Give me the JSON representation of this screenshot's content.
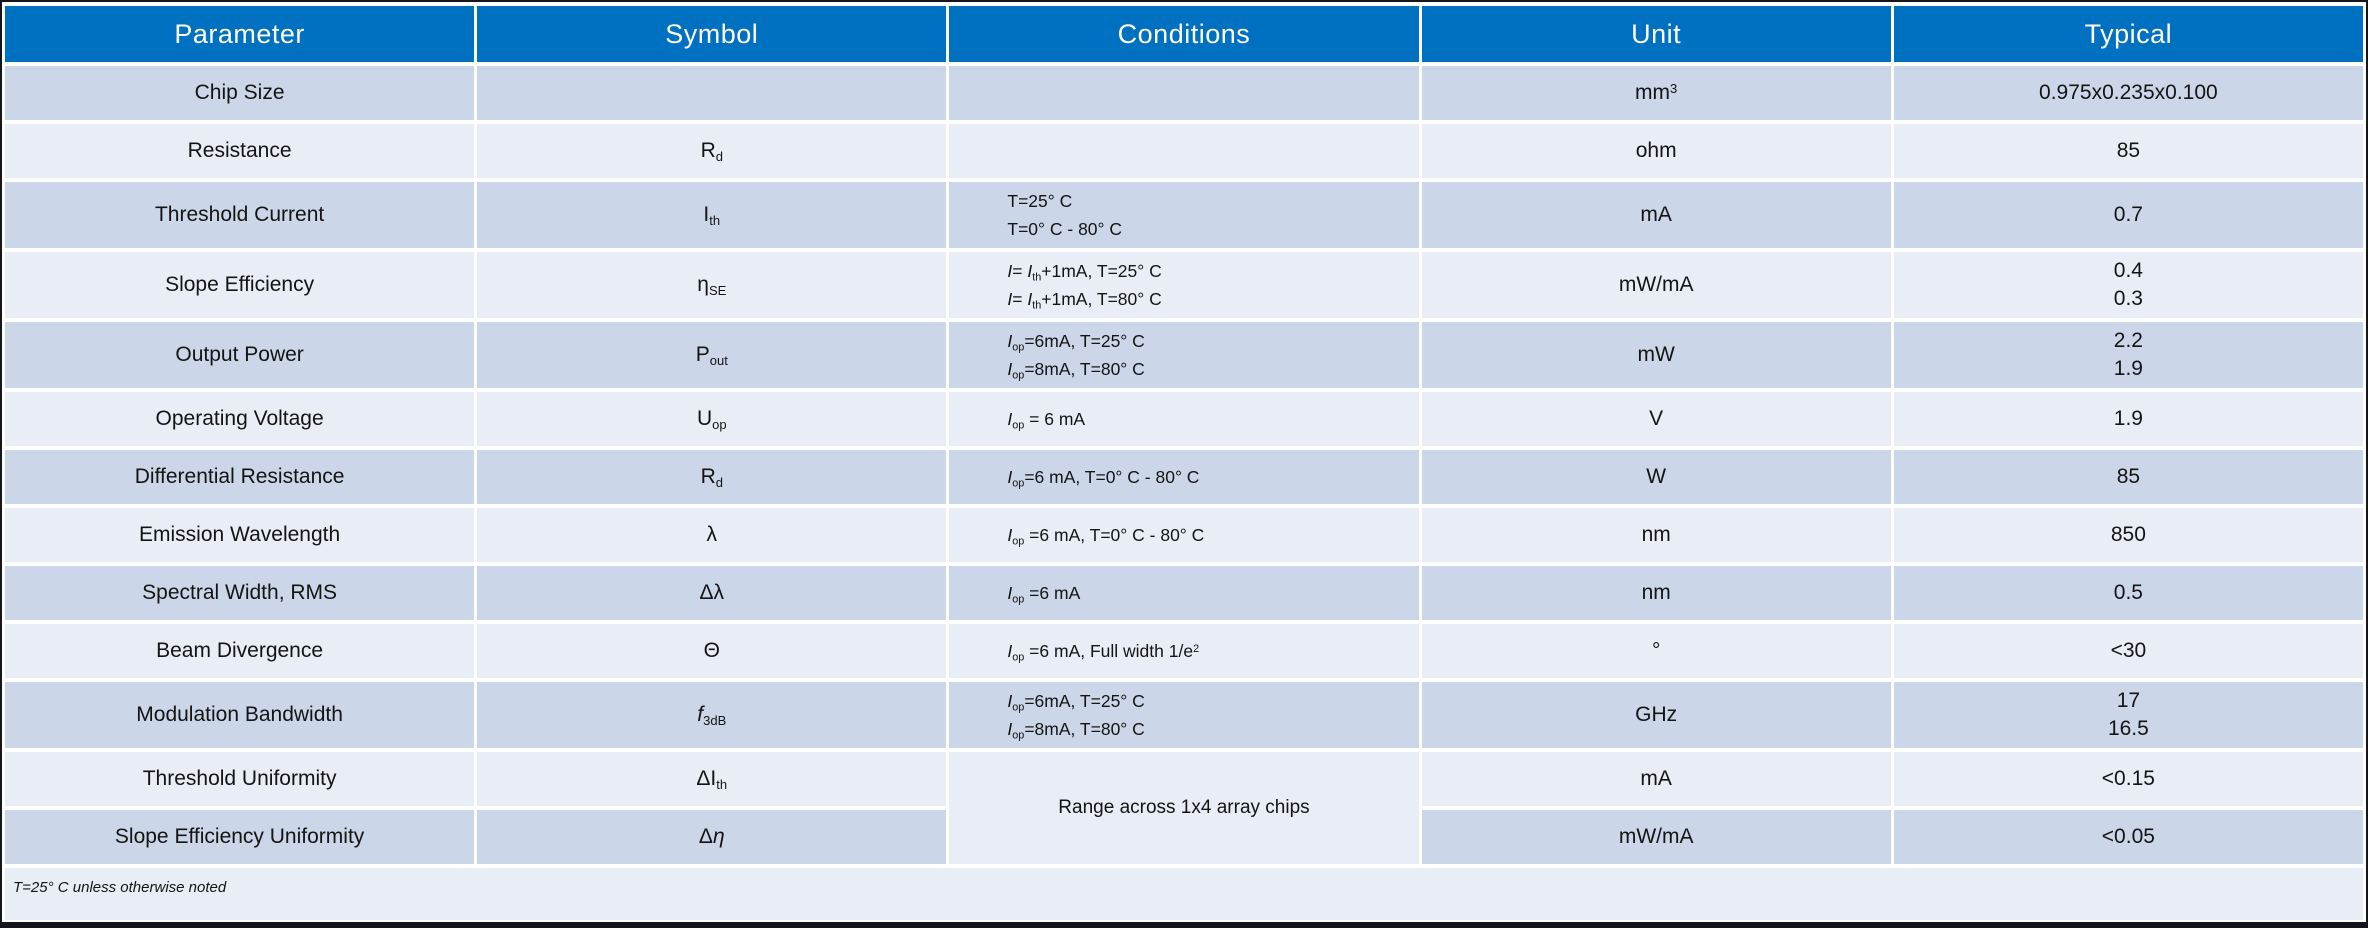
{
  "colors": {
    "header_bg": "#0070C0",
    "header_text": "#FFFFFF",
    "row_dark": "#CBD6E8",
    "row_light": "#E9EDF5",
    "border_dark": "#15151D"
  },
  "table": {
    "headers": [
      "Parameter",
      "Symbol",
      "Conditions",
      "Unit",
      "Typical"
    ],
    "rows": [
      {
        "shade": "dark",
        "parameter": "Chip Size",
        "symbol": [],
        "conditions": [],
        "unit": [
          {
            "t": "mm"
          },
          {
            "sup": "3"
          }
        ],
        "typical": [
          "0.975x0.235x0.100"
        ]
      },
      {
        "shade": "light",
        "parameter": "Resistance",
        "symbol": [
          {
            "t": "R"
          },
          {
            "sub": "d"
          }
        ],
        "conditions": [],
        "unit": [
          {
            "t": "ohm"
          }
        ],
        "typical": [
          "85"
        ]
      },
      {
        "shade": "dark",
        "parameter": "Threshold Current",
        "symbol": [
          {
            "t": "I"
          },
          {
            "sub": "th"
          }
        ],
        "conditions": [
          [
            {
              "t": "T=25° C"
            }
          ],
          [
            {
              "t": "T=0° C - 80° C"
            }
          ]
        ],
        "unit": [
          {
            "t": "mA"
          }
        ],
        "typical": [
          "0.7"
        ]
      },
      {
        "shade": "light",
        "parameter": "Slope Efficiency",
        "symbol": [
          {
            "t": "η"
          },
          {
            "sub": "SE"
          }
        ],
        "conditions": [
          [
            {
              "i": "I"
            },
            {
              "t": "= "
            },
            {
              "i": "I"
            },
            {
              "sub": "th"
            },
            {
              "t": "+1mA, T=25° C"
            }
          ],
          [
            {
              "i": "I"
            },
            {
              "t": "= "
            },
            {
              "i": "I"
            },
            {
              "sub": "th"
            },
            {
              "t": "+1mA, T=80° C"
            }
          ]
        ],
        "unit": [
          {
            "t": "mW/mA"
          }
        ],
        "typical": [
          "0.4",
          "0.3"
        ]
      },
      {
        "shade": "dark",
        "parameter": "Output Power",
        "symbol": [
          {
            "t": "P"
          },
          {
            "sub": "out"
          }
        ],
        "conditions": [
          [
            {
              "i": "I"
            },
            {
              "sub": "op"
            },
            {
              "t": "=6mA, T=25° C"
            }
          ],
          [
            {
              "i": "I"
            },
            {
              "sub": "op"
            },
            {
              "t": "=8mA, T=80° C"
            }
          ]
        ],
        "unit": [
          {
            "t": "mW"
          }
        ],
        "typical": [
          "2.2",
          "1.9"
        ]
      },
      {
        "shade": "light",
        "parameter": "Operating Voltage",
        "symbol": [
          {
            "t": "U"
          },
          {
            "sub": "op"
          }
        ],
        "conditions": [
          [
            {
              "i": "I"
            },
            {
              "sub": "op"
            },
            {
              "t": " = 6 mA"
            }
          ]
        ],
        "unit": [
          {
            "t": "V"
          }
        ],
        "typical": [
          "1.9"
        ]
      },
      {
        "shade": "dark",
        "parameter": "Differential Resistance",
        "symbol": [
          {
            "t": "R"
          },
          {
            "sub": "d"
          }
        ],
        "conditions": [
          [
            {
              "i": "I"
            },
            {
              "sub": "op"
            },
            {
              "t": "=6 mA, T=0° C - 80° C"
            }
          ]
        ],
        "unit": [
          {
            "t": "W"
          }
        ],
        "typical": [
          "85"
        ]
      },
      {
        "shade": "light",
        "parameter": "Emission Wavelength",
        "symbol": [
          {
            "t": "λ"
          }
        ],
        "conditions": [
          [
            {
              "i": "I"
            },
            {
              "sub": "op"
            },
            {
              "t": " =6 mA, T=0° C - 80° C"
            }
          ]
        ],
        "unit": [
          {
            "t": "nm"
          }
        ],
        "typical": [
          "850"
        ]
      },
      {
        "shade": "dark",
        "parameter": "Spectral Width, RMS",
        "symbol": [
          {
            "t": "Δλ"
          }
        ],
        "conditions": [
          [
            {
              "i": "I"
            },
            {
              "sub": "op"
            },
            {
              "t": " =6 mA"
            }
          ]
        ],
        "unit": [
          {
            "t": "nm"
          }
        ],
        "typical": [
          "0.5"
        ]
      },
      {
        "shade": "light",
        "parameter": "Beam Divergence",
        "symbol": [
          {
            "t": "Θ"
          }
        ],
        "conditions": [
          [
            {
              "i": "I"
            },
            {
              "sub": "op"
            },
            {
              "t": " =6 mA, Full width 1/e"
            },
            {
              "sup": "2"
            }
          ]
        ],
        "unit": [
          {
            "t": "°"
          }
        ],
        "typical": [
          "<30"
        ]
      },
      {
        "shade": "dark",
        "parameter": "Modulation Bandwidth",
        "symbol": [
          {
            "i": "f"
          },
          {
            "sub": "3dB"
          }
        ],
        "conditions": [
          [
            {
              "i": "I"
            },
            {
              "sub": "op"
            },
            {
              "t": "=6mA, T=25° C"
            }
          ],
          [
            {
              "i": "I"
            },
            {
              "sub": "op"
            },
            {
              "t": "=8mA, T=80° C"
            }
          ]
        ],
        "unit": [
          {
            "t": "GHz"
          }
        ],
        "typical": [
          "17",
          "16.5"
        ]
      },
      {
        "shade": "light",
        "parameter": "Threshold Uniformity",
        "symbol": [
          {
            "t": "ΔI"
          },
          {
            "sub": "th"
          }
        ],
        "unit": [
          {
            "t": "mA"
          }
        ],
        "typical": [
          "<0.15"
        ]
      },
      {
        "shade": "dark",
        "parameter": "Slope Efficiency Uniformity",
        "symbol": [
          {
            "t": "Δ"
          },
          {
            "i": "η"
          }
        ],
        "unit": [
          {
            "t": "mW/mA"
          }
        ],
        "typical": [
          "<0.05"
        ]
      }
    ],
    "merged_conditions": {
      "text": "Range across 1x4 array chips",
      "start_row_index": 11,
      "rowspan": 2
    },
    "footnote": "T=25° C unless otherwise noted"
  }
}
